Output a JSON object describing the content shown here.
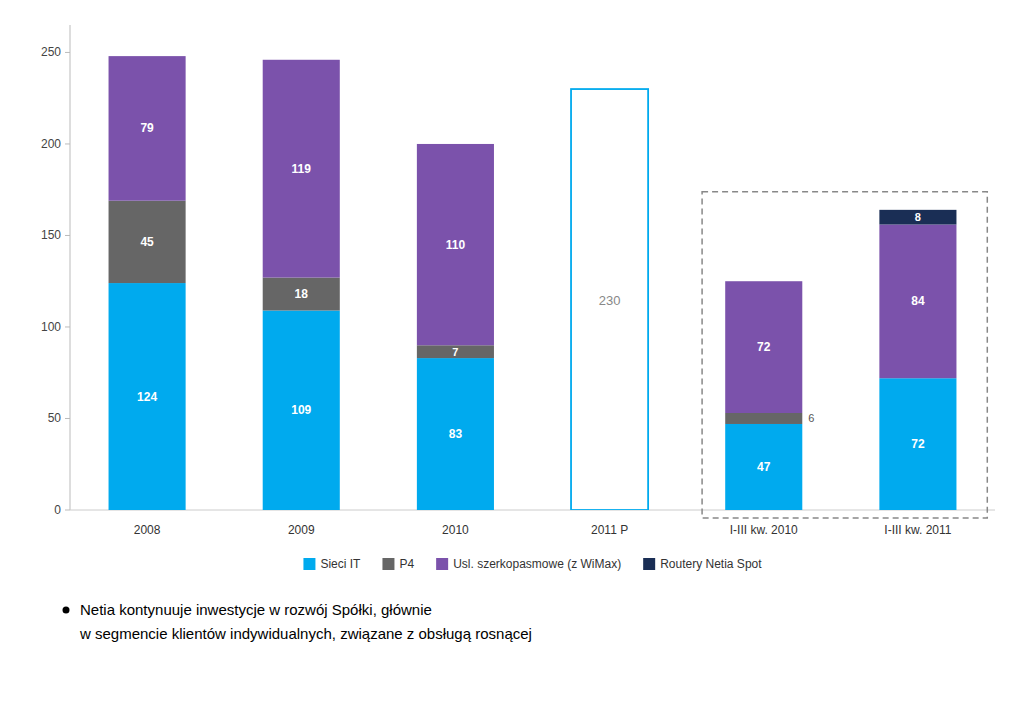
{
  "chart_data": {
    "type": "bar",
    "stacked": true,
    "data_labels": true,
    "grid": false,
    "legend": "bottom",
    "categories": [
      "2008",
      "2009",
      "2010",
      "2011 P",
      "I-III kw. 2010",
      "I-III kw. 2011"
    ],
    "series": [
      {
        "name": "Sieci IT",
        "color": "#00AAEE",
        "values": [
          124,
          109,
          83,
          0,
          47,
          72
        ]
      },
      {
        "name": "P4",
        "color": "#666666",
        "values": [
          45,
          18,
          7,
          0,
          6,
          0
        ]
      },
      {
        "name": "Usl. szerkopasmowe (z WiMax)",
        "color": "#7B52AB",
        "values": [
          79,
          119,
          110,
          0,
          72,
          84
        ]
      },
      {
        "name": "Routery Netia Spot",
        "color": "#1A2E55",
        "values": [
          0,
          0,
          0,
          0,
          0,
          8
        ]
      },
      {
        "type": "outline",
        "color": "#00AAEE",
        "values": [
          null,
          null,
          null,
          230,
          null,
          null
        ]
      }
    ],
    "ylim": [
      0,
      265
    ],
    "yticks": [
      0,
      50,
      100,
      150,
      200,
      250
    ],
    "annotations": [
      "Netia kontynuuje inwestycje w rozwój Spółki, głównie",
      "w segmencie klientów indywidualnych, związane z obsługą rosnącej"
    ]
  }
}
